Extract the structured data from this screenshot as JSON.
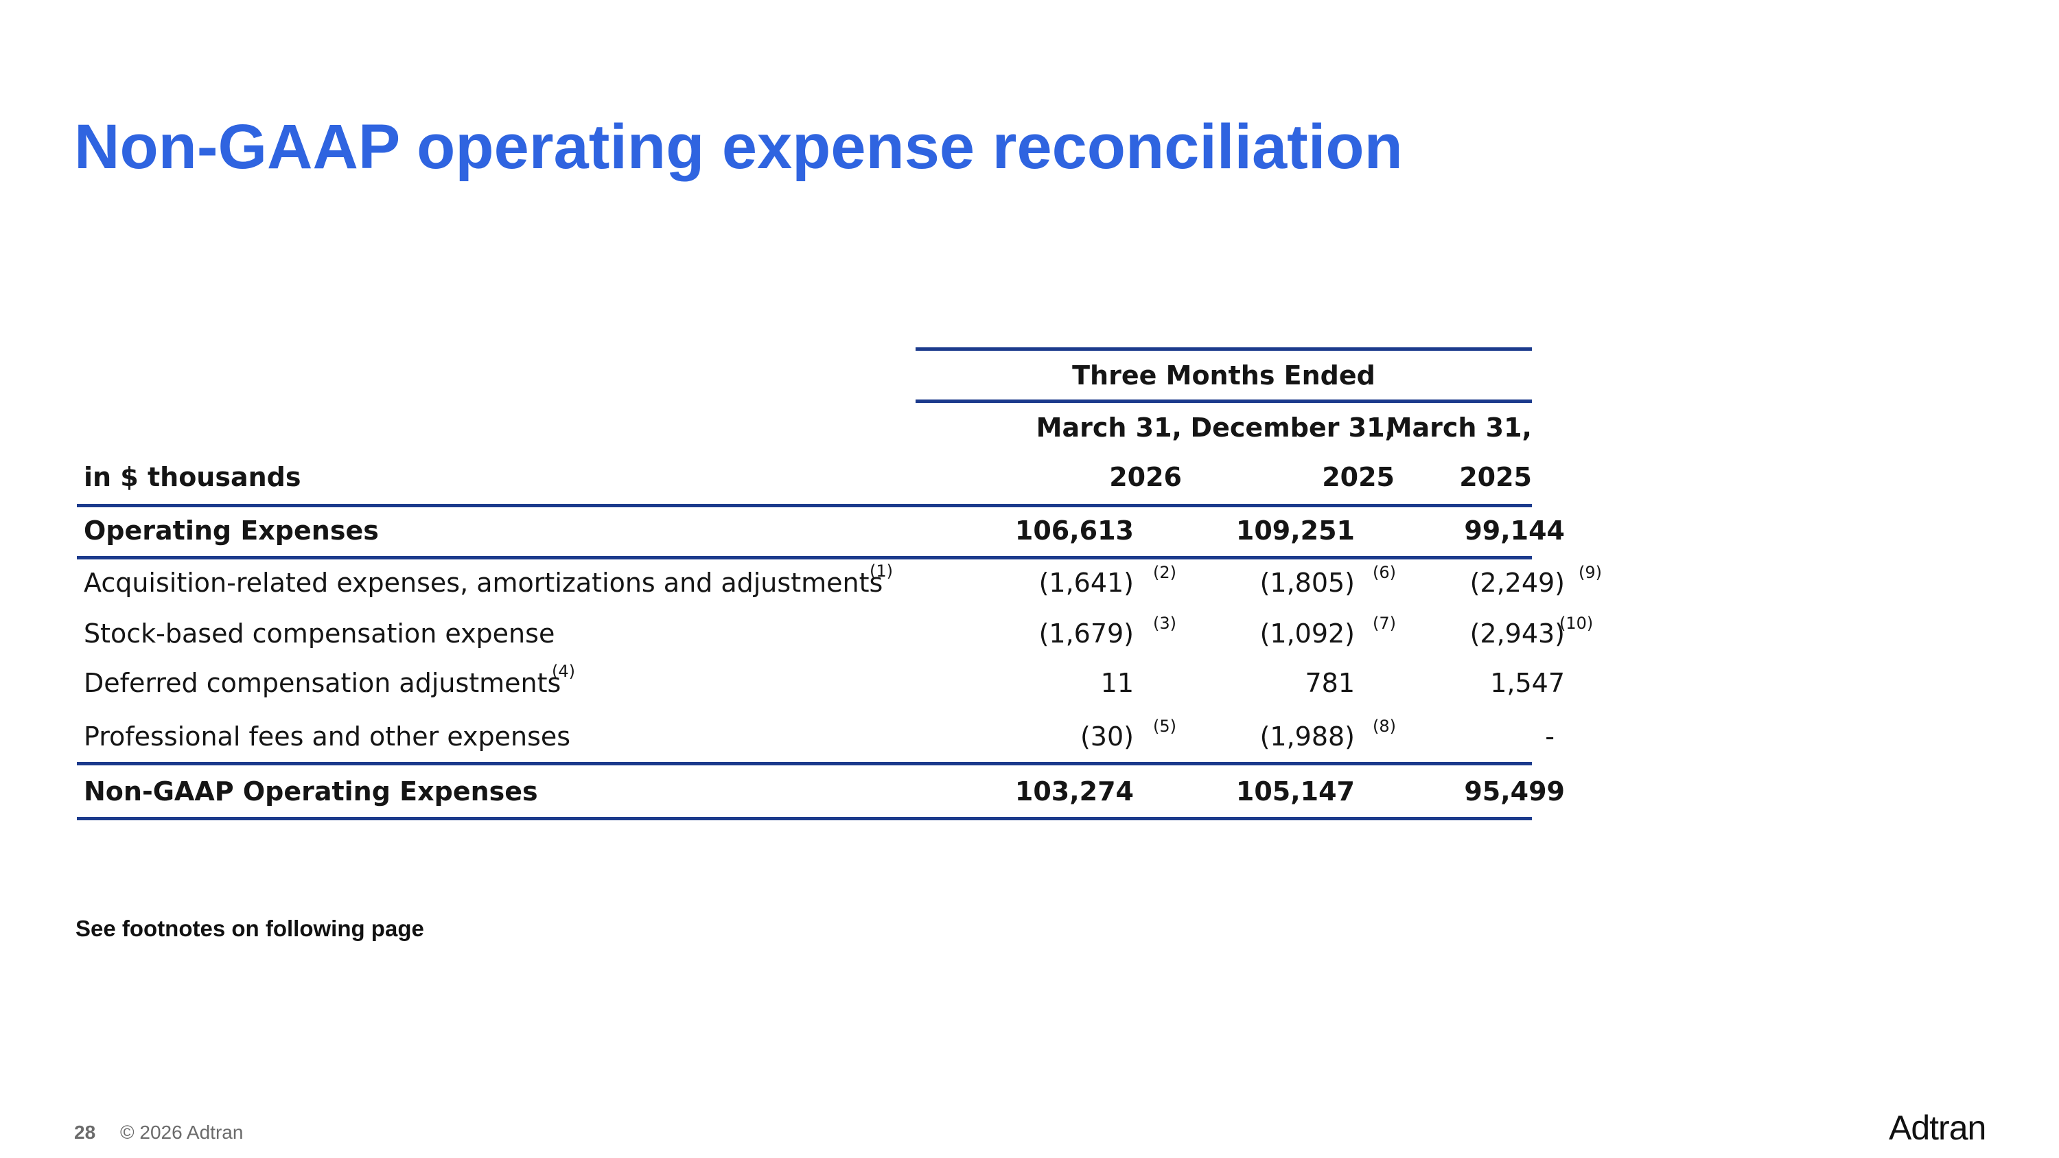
{
  "slide": {
    "title": "Non-GAAP operating expense reconciliation",
    "footnote_note": "See footnotes on following page",
    "page_number": "28",
    "copyright": "© 2026 Adtran",
    "logo_text": "Adtran"
  },
  "table": {
    "group_header": "Three Months Ended",
    "units_label": "in $ thousands",
    "columns": [
      {
        "line1": "March 31,",
        "line2": "2026"
      },
      {
        "line1": "December 31,",
        "line2": "2025"
      },
      {
        "line1": "March 31,",
        "line2": "2025"
      }
    ],
    "rows": [
      {
        "label": "Operating Expenses",
        "label_sup": "",
        "bold": true,
        "values": [
          "106,613",
          "109,251",
          "99,144"
        ],
        "notes": [
          "",
          "",
          ""
        ]
      },
      {
        "label": "Acquisition-related expenses, amortizations and adjustments",
        "label_sup": "(1)",
        "bold": false,
        "values": [
          "(1,641)",
          "(1,805)",
          "(2,249)"
        ],
        "notes": [
          "(2)",
          "(6)",
          "(9)"
        ]
      },
      {
        "label": "Stock-based compensation expense",
        "label_sup": "",
        "bold": false,
        "values": [
          "(1,679)",
          "(1,092)",
          "(2,943)"
        ],
        "notes": [
          "(3)",
          "(7)",
          "(10)"
        ]
      },
      {
        "label": "Deferred compensation adjustments",
        "label_sup": "(4)",
        "bold": false,
        "values": [
          "11",
          "781",
          "1,547"
        ],
        "notes": [
          "",
          "",
          ""
        ]
      },
      {
        "label": "Professional fees and other expenses",
        "label_sup": "",
        "bold": false,
        "values": [
          "(30)",
          "(1,988)",
          "-"
        ],
        "notes": [
          "(5)",
          "(8)",
          ""
        ]
      },
      {
        "label": "Non-GAAP Operating Expenses",
        "label_sup": "",
        "bold": true,
        "values": [
          "103,274",
          "105,147",
          "95,499"
        ],
        "notes": [
          "",
          "",
          ""
        ]
      }
    ]
  },
  "colors": {
    "title": "#2f64e0",
    "rule": "#1b3a8c"
  }
}
